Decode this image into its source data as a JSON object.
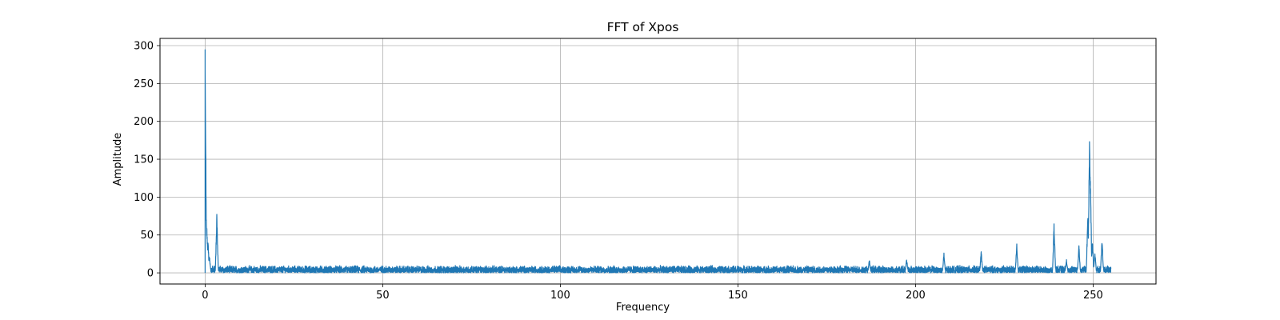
{
  "chart_data": {
    "type": "line",
    "title": "FFT of Xpos",
    "xlabel": "Frequency",
    "ylabel": "Amplitude",
    "xlim": [
      -12.7,
      267.7
    ],
    "ylim": [
      -14.7,
      309.5
    ],
    "xticks": [
      0,
      50,
      100,
      150,
      200,
      250
    ],
    "yticks": [
      0,
      50,
      100,
      150,
      200,
      250,
      300
    ],
    "grid": true,
    "series_color": "#1f77b4",
    "noise_floor": {
      "x_range": [
        0,
        255
      ],
      "typical_max": 10
    },
    "peaks": [
      {
        "x": 0,
        "y": 295
      },
      {
        "x": 0.1,
        "y": 108
      },
      {
        "x": 0.3,
        "y": 88
      },
      {
        "x": 0.5,
        "y": 60
      },
      {
        "x": 0.8,
        "y": 45
      },
      {
        "x": 1.2,
        "y": 25
      },
      {
        "x": 3.3,
        "y": 80
      },
      {
        "x": 187,
        "y": 18
      },
      {
        "x": 197.5,
        "y": 20
      },
      {
        "x": 208,
        "y": 27
      },
      {
        "x": 218.5,
        "y": 30
      },
      {
        "x": 228.5,
        "y": 39
      },
      {
        "x": 239,
        "y": 69
      },
      {
        "x": 242.5,
        "y": 18
      },
      {
        "x": 246,
        "y": 38
      },
      {
        "x": 248.5,
        "y": 80
      },
      {
        "x": 249,
        "y": 200
      },
      {
        "x": 249.2,
        "y": 153
      },
      {
        "x": 249.8,
        "y": 45
      },
      {
        "x": 250.5,
        "y": 30
      },
      {
        "x": 252.5,
        "y": 47
      }
    ]
  }
}
